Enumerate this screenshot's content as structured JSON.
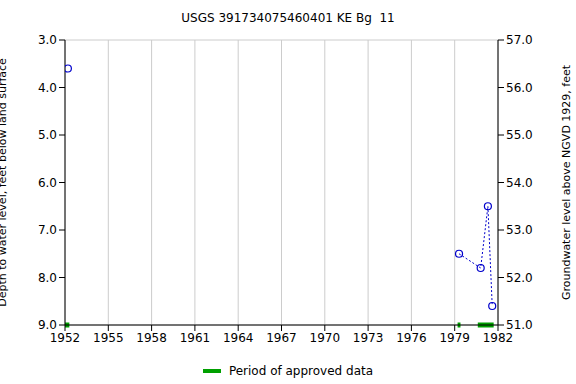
{
  "chart_data": {
    "type": "scatter",
    "title": "USGS 391734075460401 KE Bg  11",
    "x_label": "",
    "y_label": "Depth to water level, feet below land surface",
    "y2_label": "Groundwater level above NGVD 1929, feet",
    "xlim": [
      1952,
      1982
    ],
    "xticks": [
      1952,
      1955,
      1958,
      1961,
      1964,
      1967,
      1970,
      1973,
      1976,
      1979,
      1982
    ],
    "ylim": [
      9,
      3
    ],
    "yticks": [
      {
        "value": 3,
        "label": "3.0"
      },
      {
        "value": 4,
        "label": "4.0"
      },
      {
        "value": 5,
        "label": "5.0"
      },
      {
        "value": 6,
        "label": "6.0"
      },
      {
        "value": 7,
        "label": "7.0"
      },
      {
        "value": 8,
        "label": "8.0"
      },
      {
        "value": 9,
        "label": "9.0"
      }
    ],
    "y2lim": [
      51,
      57
    ],
    "y2ticks": [
      {
        "value": 51,
        "label": "51.0"
      },
      {
        "value": 52,
        "label": "52.0"
      },
      {
        "value": 53,
        "label": "53.0"
      },
      {
        "value": 54,
        "label": "54.0"
      },
      {
        "value": 55,
        "label": "55.0"
      },
      {
        "value": 56,
        "label": "56.0"
      },
      {
        "value": 57,
        "label": "57.0"
      }
    ],
    "grid": true,
    "series": [
      {
        "color": "#0000cc",
        "marker": "circle_open",
        "line_style": "dotted",
        "x": [
          1952.2
        ],
        "values": [
          3.6
        ]
      },
      {
        "color": "#0000cc",
        "marker": "circle_open",
        "line_style": "dotted",
        "x": [
          1979.3,
          1980.8,
          1981.3,
          1981.6
        ],
        "values": [
          7.5,
          7.8,
          6.5,
          8.6
        ]
      }
    ],
    "approved_periods": {
      "name": "Period of approved data",
      "color": "#00a000",
      "ranges": [
        [
          1952,
          1952.3
        ],
        [
          1979.2,
          1979.4
        ],
        [
          1980.6,
          1981.7
        ]
      ]
    }
  }
}
